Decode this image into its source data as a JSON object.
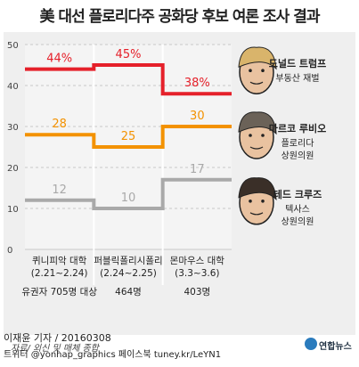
{
  "title": "美 대선 플로리다주 공화당 후보 여론 조사 결과",
  "chart_data": {
    "type": "line",
    "step": true,
    "ylim": [
      0,
      50
    ],
    "yticks": [
      0,
      10,
      20,
      30,
      40,
      50
    ],
    "polls": [
      {
        "name": "퀴니피악 대학",
        "dates": "(2.21~2.24)",
        "sample": "유권자 705명 대상"
      },
      {
        "name": "퍼블릭폴리시폴리",
        "dates": "(2.24~2.25)",
        "sample": "464명"
      },
      {
        "name": "몬마우스 대학",
        "dates": "(3.3~3.6)",
        "sample": "403명"
      }
    ],
    "series": [
      {
        "name": "도널드 트럼프",
        "role": "부동산 재벌",
        "color": "#e5202a",
        "values": [
          44,
          45,
          38
        ],
        "labels": [
          "44%",
          "45%",
          "38%"
        ]
      },
      {
        "name": "마르코 루비오",
        "role_lines": [
          "플로리다",
          "상원의원"
        ],
        "color": "#f39200",
        "values": [
          28,
          25,
          30
        ],
        "labels": [
          "28",
          "25",
          "30"
        ]
      },
      {
        "name": "테드 크루즈",
        "role_lines": [
          "텍사스",
          "상원의원"
        ],
        "color": "#a9a9a9",
        "values": [
          12,
          10,
          17
        ],
        "labels": [
          "12",
          "10",
          "17"
        ]
      }
    ]
  },
  "source": "자료/ 외신 및 매체 종합",
  "agency": "연합뉴스",
  "byline": "이재윤 기자 / 20160308",
  "social": "트위터 @yonhap_graphics  페이스북 tuney.kr/LeYN1"
}
